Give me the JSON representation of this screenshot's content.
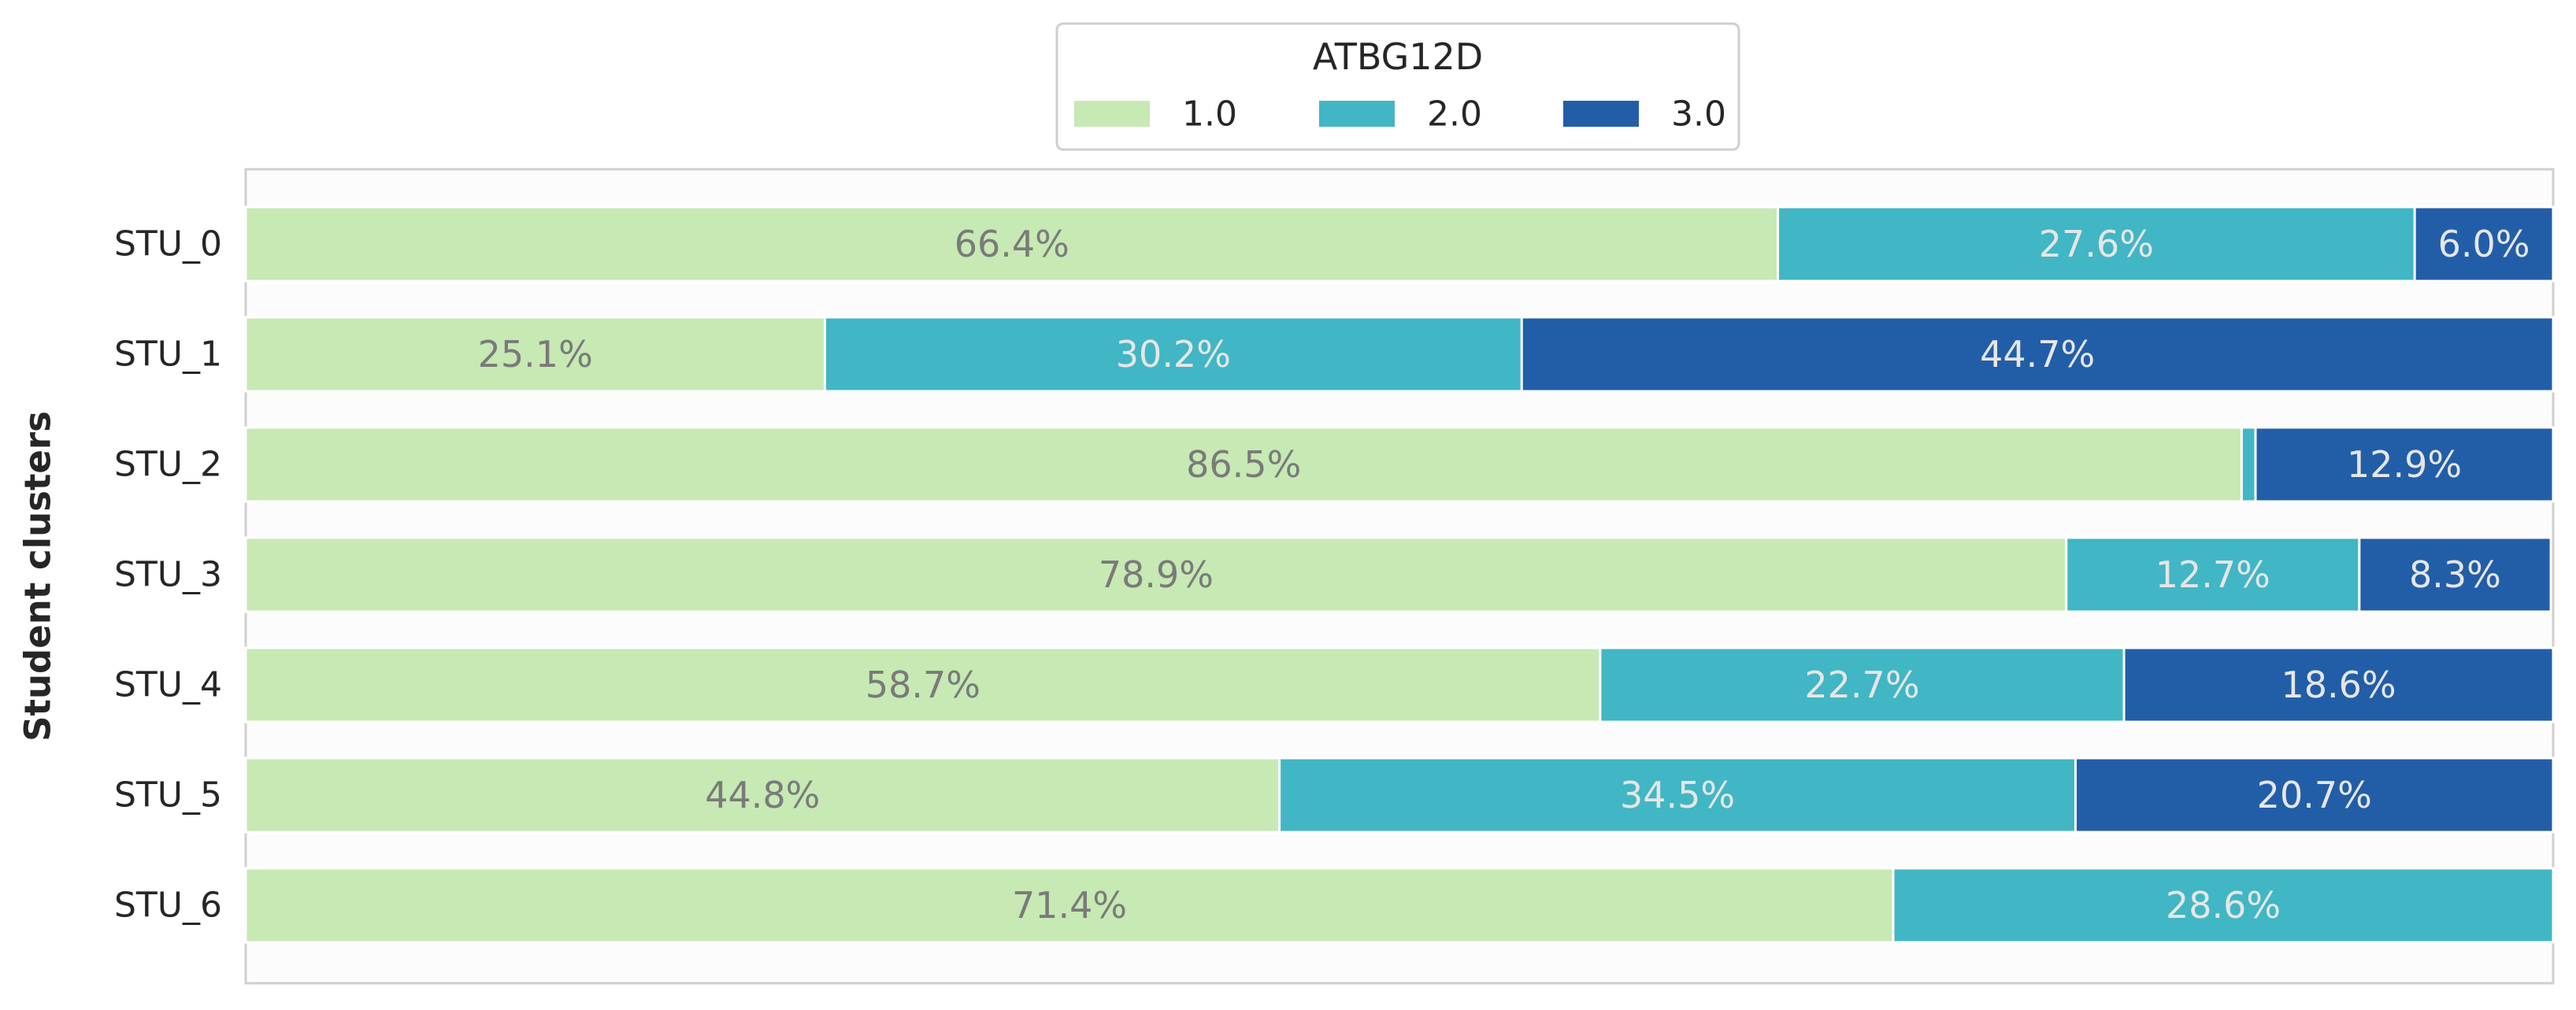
{
  "chart_data": {
    "type": "bar",
    "orientation": "horizontal",
    "stacked": true,
    "normalized": true,
    "categories": [
      "STU_0",
      "STU_1",
      "STU_2",
      "STU_3",
      "STU_4",
      "STU_5",
      "STU_6"
    ],
    "series": [
      {
        "name": "1.0",
        "color": "#c7e9b4",
        "label_color": "#7a7a7a",
        "values": [
          66.4,
          25.1,
          86.5,
          78.9,
          58.7,
          44.8,
          71.4
        ]
      },
      {
        "name": "2.0",
        "color": "#41b6c4",
        "label_color": "#e6e6e6",
        "values": [
          27.6,
          30.2,
          0.6,
          12.7,
          22.7,
          34.5,
          28.6
        ]
      },
      {
        "name": "3.0",
        "color": "#225ea8",
        "label_color": "#e6e6e6",
        "values": [
          6.0,
          44.7,
          12.9,
          8.3,
          18.6,
          20.7,
          0.0
        ]
      }
    ],
    "data_labels": [
      [
        "66.4%",
        "27.6%",
        "6.0%"
      ],
      [
        "25.1%",
        "30.2%",
        "44.7%"
      ],
      [
        "86.5%",
        "",
        "12.9%"
      ],
      [
        "78.9%",
        "12.7%",
        "8.3%"
      ],
      [
        "58.7%",
        "22.7%",
        "18.6%"
      ],
      [
        "44.8%",
        "34.5%",
        "20.7%"
      ],
      [
        "71.4%",
        "28.6%",
        ""
      ]
    ],
    "title": "",
    "xlabel": "",
    "ylabel": "Student clusters",
    "xlim": [
      0,
      100
    ],
    "legend": {
      "title": "ATBG12D",
      "position": "top-center",
      "entries": [
        "1.0",
        "2.0",
        "3.0"
      ]
    },
    "grid": false
  }
}
